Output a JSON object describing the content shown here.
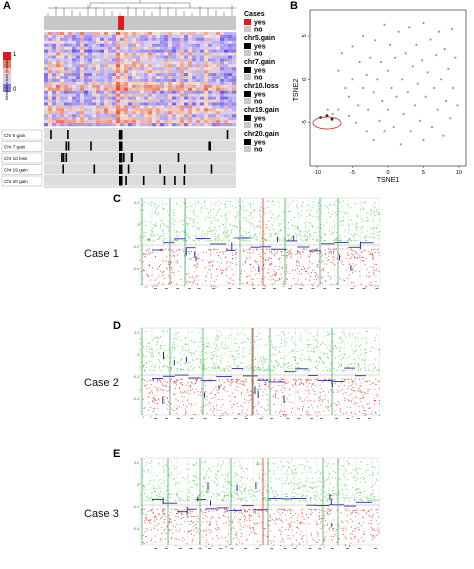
{
  "panels": {
    "a": {
      "letter": "A",
      "colorbar": {
        "max": "1",
        "min": "0",
        "title": "Methylation level (β-value)"
      },
      "track_labels": [
        "Chr 5 gain",
        "Chr 7 gain",
        "Chr 10 loss",
        "Chr 19 gain",
        "Chr 20 gain"
      ],
      "legend": [
        {
          "title": "Cases",
          "items": [
            {
              "label": "yes",
              "color": "#e01b1b"
            },
            {
              "label": "no",
              "color": "#c8c8c8"
            }
          ]
        },
        {
          "title": "chr5.gain",
          "items": [
            {
              "label": "yes",
              "color": "#000000"
            },
            {
              "label": "no",
              "color": "#c8c8c8"
            }
          ]
        },
        {
          "title": "chr7.gain",
          "items": [
            {
              "label": "yes",
              "color": "#000000"
            },
            {
              "label": "no",
              "color": "#c8c8c8"
            }
          ]
        },
        {
          "title": "chr10.loss",
          "items": [
            {
              "label": "yes",
              "color": "#000000"
            },
            {
              "label": "no",
              "color": "#c8c8c8"
            }
          ]
        },
        {
          "title": "chr19.gain",
          "items": [
            {
              "label": "yes",
              "color": "#000000"
            },
            {
              "label": "no",
              "color": "#c8c8c8"
            }
          ]
        },
        {
          "title": "chr20.gain",
          "items": [
            {
              "label": "yes",
              "color": "#000000"
            },
            {
              "label": "no",
              "color": "#c8c8c8"
            }
          ]
        }
      ]
    },
    "b": {
      "letter": "B",
      "xlabel": "TSNE1",
      "ylabel": "TSNE2",
      "xticks": [
        "-10",
        "-5",
        "0",
        "5",
        "10"
      ],
      "yticks": [
        "5",
        "0",
        "-5"
      ]
    },
    "c": {
      "letter": "C",
      "case": "Case 1"
    },
    "d": {
      "letter": "D",
      "case": "Case 2"
    },
    "e": {
      "letter": "E",
      "case": "Case 3"
    }
  },
  "cnv_yticks": [
    "0.2",
    "0",
    "-0.2",
    "-0.4"
  ],
  "colors": {
    "gain": "#2ecc2e",
    "loss": "#e02020",
    "segment": "#2a2aa0",
    "highlight_green": "#2aa84a",
    "highlight_red": "#e03030"
  },
  "chart_data": [
    {
      "type": "scatter",
      "title": "",
      "xlabel": "TSNE1",
      "ylabel": "TSNE2",
      "xlim": [
        -11,
        11
      ],
      "ylim": [
        -10,
        8
      ],
      "series": [
        {
          "points": [
            [
              -8.5,
              -3.5
            ],
            [
              -7.8,
              -4
            ],
            [
              -7,
              -3.5
            ],
            [
              -7,
              1
            ],
            [
              -6.5,
              3
            ],
            [
              -6,
              -1
            ],
            [
              -5.5,
              -4.2
            ],
            [
              -5.5,
              -2
            ],
            [
              -5,
              0
            ],
            [
              -5,
              3.8
            ],
            [
              -4.5,
              -5
            ],
            [
              -4.2,
              -3
            ],
            [
              -4,
              2
            ],
            [
              -3.5,
              -1
            ],
            [
              -3.5,
              5
            ],
            [
              -3,
              -6
            ],
            [
              -3,
              0.5
            ],
            [
              -2.8,
              -3.5
            ],
            [
              -2.5,
              2.5
            ],
            [
              -2,
              -1.5
            ],
            [
              -2,
              -7
            ],
            [
              -1.8,
              4.5
            ],
            [
              -1.5,
              0
            ],
            [
              -1.2,
              -4.8
            ],
            [
              -1,
              2
            ],
            [
              -0.8,
              -2.5
            ],
            [
              -0.5,
              -6
            ],
            [
              -0.5,
              6.3
            ],
            [
              0,
              1
            ],
            [
              0,
              -3.5
            ],
            [
              0.3,
              4
            ],
            [
              0.5,
              -1
            ],
            [
              0.8,
              -5.5
            ],
            [
              1,
              2.5
            ],
            [
              1.2,
              -2
            ],
            [
              1.5,
              5.5
            ],
            [
              1.8,
              -7.5
            ],
            [
              2,
              0
            ],
            [
              2.2,
              -4
            ],
            [
              2.5,
              3
            ],
            [
              2.8,
              -1.5
            ],
            [
              3,
              6
            ],
            [
              3.2,
              -6
            ],
            [
              3.5,
              1.5
            ],
            [
              3.8,
              -3
            ],
            [
              4,
              4
            ],
            [
              4.2,
              -0.5
            ],
            [
              4.5,
              -4.8
            ],
            [
              4.8,
              2.2
            ],
            [
              5,
              -7
            ],
            [
              5,
              6.5
            ],
            [
              5.3,
              -2
            ],
            [
              5.6,
              0.8
            ],
            [
              6,
              4.6
            ],
            [
              6.2,
              -5.5
            ],
            [
              6.5,
              -1
            ],
            [
              6.8,
              2.8
            ],
            [
              7,
              -3.5
            ],
            [
              7.2,
              5.5
            ],
            [
              7.5,
              0
            ],
            [
              7.8,
              -6.5
            ],
            [
              8,
              3.5
            ],
            [
              8.2,
              -2.5
            ],
            [
              8.5,
              1.2
            ],
            [
              8.8,
              -4.5
            ],
            [
              9,
              5.8
            ],
            [
              9.2,
              -1
            ],
            [
              9.5,
              2.5
            ],
            [
              9.8,
              -3
            ]
          ]
        },
        {
          "name": "Cases",
          "points": [
            [
              -9.5,
              -4.4
            ],
            [
              -8.6,
              -4.2
            ],
            [
              -7.9,
              -4.6
            ]
          ]
        }
      ]
    }
  ]
}
